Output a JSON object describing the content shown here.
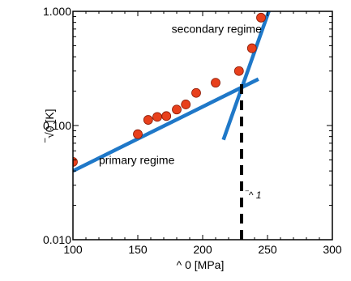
{
  "chart_data": {
    "type": "scatter",
    "title": "",
    "xlabel": "^ 0 [MPa]",
    "ylabel": "‾√0 [K]",
    "xlim": [
      100,
      300
    ],
    "ylim": [
      0.01,
      1.0
    ],
    "yscale": "log",
    "x_ticks": [
      100,
      150,
      200,
      250,
      300
    ],
    "x_tick_labels": [
      "100",
      "150",
      "200",
      "250",
      "300"
    ],
    "y_ticks": [
      0.01,
      0.1,
      1.0
    ],
    "y_tick_labels": [
      "0.010",
      "0.100",
      "1.000"
    ],
    "grid": false,
    "legend": "none",
    "series": [
      {
        "kind": "points",
        "color": "#e8401c",
        "edge_color": "#8b1a05",
        "points": [
          {
            "x": 100,
            "y": 0.048
          },
          {
            "x": 150,
            "y": 0.084
          },
          {
            "x": 158,
            "y": 0.112
          },
          {
            "x": 165,
            "y": 0.119
          },
          {
            "x": 172,
            "y": 0.121
          },
          {
            "x": 180,
            "y": 0.138
          },
          {
            "x": 187,
            "y": 0.153
          },
          {
            "x": 195,
            "y": 0.193
          },
          {
            "x": 210,
            "y": 0.237
          },
          {
            "x": 228,
            "y": 0.3
          },
          {
            "x": 238,
            "y": 0.475
          },
          {
            "x": 245,
            "y": 0.88
          }
        ]
      },
      {
        "kind": "fit-line",
        "color": "#1f78c8",
        "points": [
          {
            "x": 100,
            "y": 0.04
          },
          {
            "x": 243,
            "y": 0.255
          }
        ]
      },
      {
        "kind": "fit-line",
        "color": "#1f78c8",
        "points": [
          {
            "x": 216,
            "y": 0.075
          },
          {
            "x": 251,
            "y": 1.0
          }
        ]
      },
      {
        "kind": "threshold-line",
        "color": "#000000",
        "points": [
          {
            "x": 230,
            "y": 0.01
          },
          {
            "x": 230,
            "y": 0.23
          }
        ]
      }
    ],
    "annotations": [
      {
        "text": "secondary regime",
        "x": 176,
        "y": 0.65
      },
      {
        "text": "primary regime",
        "x": 120,
        "y": 0.046
      },
      {
        "text": "‾^ 1",
        "x": 233,
        "y": 0.023
      }
    ]
  }
}
